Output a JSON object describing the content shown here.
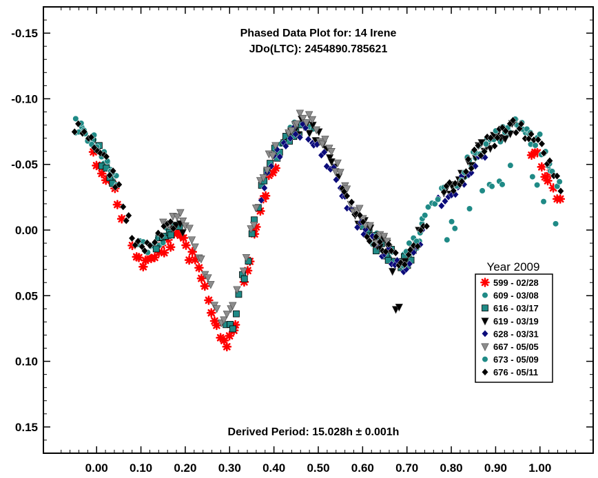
{
  "chart_data": {
    "type": "scatter",
    "title": "Phased Data Plot for: 14 Irene",
    "subtitle": "JDo(LTC): 2454890.785621",
    "annotation": "Derived Period: 15.028h ± 0.001h",
    "xlabel": "",
    "ylabel": "",
    "xlim": [
      -0.12,
      1.12
    ],
    "ylim": [
      -0.17,
      0.17
    ],
    "y_inverted": true,
    "grid": false,
    "legend_position": "bottom-right",
    "legend_title": "Year 2009",
    "x_ticks": [
      "0.00",
      "0.10",
      "0.20",
      "0.30",
      "0.40",
      "0.50",
      "0.60",
      "0.70",
      "0.80",
      "0.90",
      "1.00"
    ],
    "y_ticks": [
      "-0.15",
      "-0.10",
      "-0.05",
      "0.00",
      "0.05",
      "0.10",
      "0.15"
    ],
    "series": [
      {
        "name": "599 - 02/28",
        "color": "#ff0000",
        "marker": "asterisk"
      },
      {
        "name": "609 - 03/08",
        "color": "#1f8a86",
        "marker": "circle"
      },
      {
        "name": "616 - 03/17",
        "color": "#1f8a86",
        "marker": "square"
      },
      {
        "name": "619 - 03/19",
        "color": "#000000",
        "marker": "triangle-down"
      },
      {
        "name": "628 - 03/31",
        "color": "#0b0b7a",
        "marker": "diamond"
      },
      {
        "name": "667 - 05/05",
        "color": "#8c8c8c",
        "marker": "triangle-down"
      },
      {
        "name": "673 - 05/09",
        "color": "#1f8a86",
        "marker": "circle"
      },
      {
        "name": "676 - 05/11",
        "color": "#000000",
        "marker": "diamond"
      }
    ]
  }
}
